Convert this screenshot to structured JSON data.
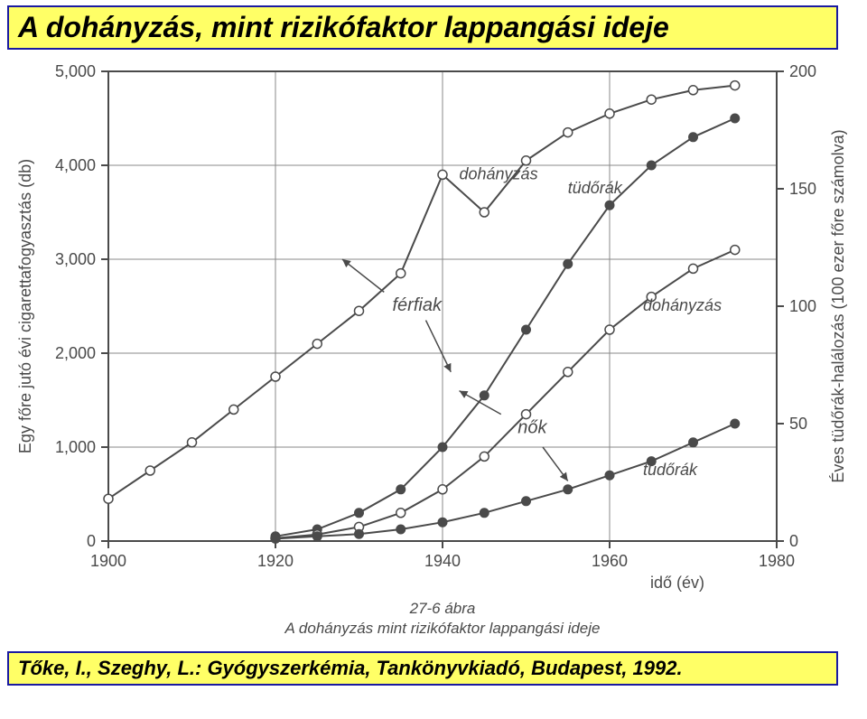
{
  "title": "A dohányzás, mint rizikófaktor lappangási ideje",
  "citation": "Tőke, I., Szeghy, L.: Gyógyszerkémia, Tankönyvkiadó, Budapest, 1992.",
  "chart": {
    "type": "line",
    "background_color": "#ffffff",
    "axis_color": "#4a4a4a",
    "grid_color": "#888888",
    "line_width": 2.0,
    "marker_size": 5,
    "text_color": "#4a4a4a",
    "tick_fontsize": 18,
    "label_fontsize": 18,
    "caption_fontsize": 17,
    "x": {
      "label": "idő (év)",
      "min": 1900,
      "max": 1980,
      "ticks": [
        1900,
        1920,
        1940,
        1960,
        1980
      ]
    },
    "y_left": {
      "label": "Egy főre jutó évi cigarettafogyasztás (db)",
      "min": 0,
      "max": 5000,
      "ticks": [
        0,
        1000,
        2000,
        3000,
        4000,
        5000
      ],
      "tick_labels": [
        "0",
        "1,000",
        "2,000",
        "3,000",
        "4,000",
        "5,000"
      ]
    },
    "y_right": {
      "label": "Éves tüdőrák-halálozás (100 ezer főre számolva)",
      "min": 0,
      "max": 200,
      "ticks": [
        0,
        50,
        100,
        150,
        200
      ]
    },
    "series": [
      {
        "name": "férfi dohányzás",
        "axis": "left",
        "marker": "open-circle",
        "label_text": "dohányzás",
        "x": [
          1900,
          1905,
          1910,
          1915,
          1920,
          1925,
          1930,
          1935,
          1940,
          1945,
          1950,
          1955,
          1960,
          1965,
          1970,
          1975
        ],
        "y": [
          450,
          750,
          1050,
          1400,
          1750,
          2100,
          2450,
          2850,
          3900,
          3500,
          4050,
          4350,
          4550,
          4700,
          4800,
          4850
        ]
      },
      {
        "name": "férfi tüdőrák",
        "axis": "right",
        "marker": "filled-circle",
        "label_text": "tüdőrák",
        "x": [
          1920,
          1925,
          1930,
          1935,
          1940,
          1945,
          1950,
          1955,
          1960,
          1965,
          1970,
          1975
        ],
        "y": [
          2,
          5,
          12,
          22,
          40,
          62,
          90,
          118,
          143,
          160,
          172,
          180
        ]
      },
      {
        "name": "női dohányzás",
        "axis": "left",
        "marker": "open-circle",
        "label_text": "dohányzás",
        "x": [
          1920,
          1925,
          1930,
          1935,
          1940,
          1945,
          1950,
          1955,
          1960,
          1965,
          1970,
          1975
        ],
        "y": [
          30,
          70,
          150,
          300,
          550,
          900,
          1350,
          1800,
          2250,
          2600,
          2900,
          3100
        ]
      },
      {
        "name": "női tüdőrák",
        "axis": "right",
        "marker": "filled-circle",
        "label_text": "tüdőrák",
        "x": [
          1920,
          1925,
          1930,
          1935,
          1940,
          1945,
          1950,
          1955,
          1960,
          1965,
          1970,
          1975
        ],
        "y": [
          1,
          2,
          3,
          5,
          8,
          12,
          17,
          22,
          28,
          34,
          42,
          50
        ]
      }
    ],
    "group_labels": [
      {
        "text": "férfiak",
        "x": 1934,
        "y_left": 2450
      },
      {
        "text": "nők",
        "x": 1949,
        "y_left": 1150
      }
    ],
    "group_arrows": [
      {
        "from": {
          "x": 1933,
          "y_left": 2650
        },
        "to": {
          "x": 1928,
          "y_left": 3000
        }
      },
      {
        "from": {
          "x": 1938,
          "y_left": 2350
        },
        "to": {
          "x": 1941,
          "y_left": 1800
        }
      },
      {
        "from": {
          "x": 1947,
          "y_left": 1350
        },
        "to": {
          "x": 1942,
          "y_left": 1600
        }
      },
      {
        "from": {
          "x": 1952,
          "y_left": 1000
        },
        "to": {
          "x": 1955,
          "y_left": 640
        }
      }
    ],
    "series_label_positions": [
      {
        "text": "dohányzás",
        "x": 1942,
        "y_left": 3850
      },
      {
        "text": "tüdőrák",
        "x": 1955,
        "y_left": 3700
      },
      {
        "text": "dohányzás",
        "x": 1964,
        "y_left": 2450
      },
      {
        "text": "tüdőrák",
        "x": 1964,
        "y_left": 700
      }
    ],
    "caption_lines": [
      "27-6 ábra",
      "A dohányzás mint rizikófaktor lappangási ideje"
    ]
  },
  "colors": {
    "title_bg": "#ffff66",
    "title_border": "#1a1aa0",
    "title_text": "#000000"
  }
}
